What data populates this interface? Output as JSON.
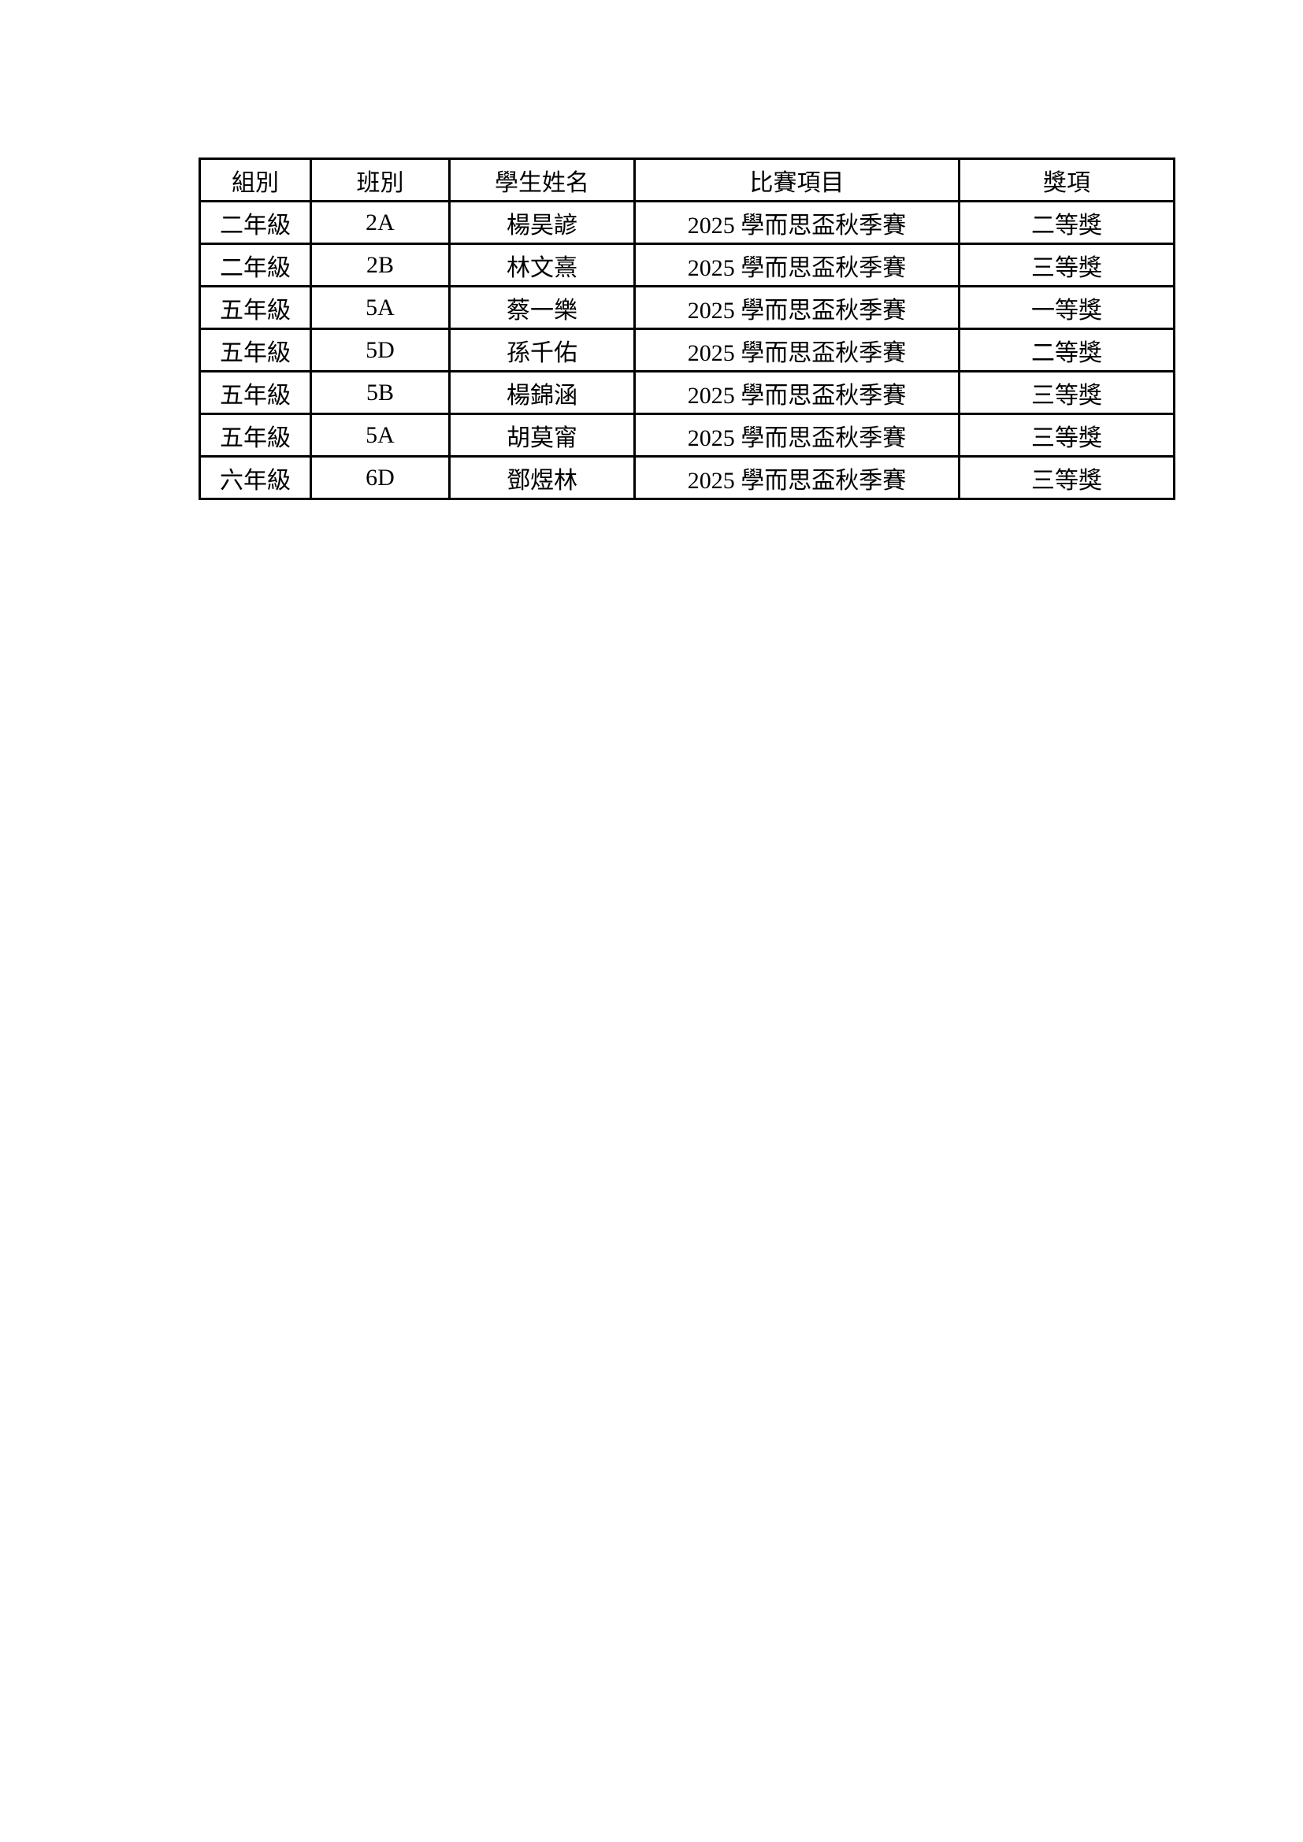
{
  "table": {
    "headers": [
      "組別",
      "班別",
      "學生姓名",
      "比賽項目",
      "獎項"
    ],
    "rows": [
      [
        "二年級",
        "2A",
        "楊昊諺",
        "2025 學而思盃秋季賽",
        "二等獎"
      ],
      [
        "二年級",
        "2B",
        "林文熹",
        "2025 學而思盃秋季賽",
        "三等獎"
      ],
      [
        "五年級",
        "5A",
        "蔡一樂",
        "2025 學而思盃秋季賽",
        "一等獎"
      ],
      [
        "五年級",
        "5D",
        "孫千佑",
        "2025 學而思盃秋季賽",
        "二等獎"
      ],
      [
        "五年級",
        "5B",
        "楊錦涵",
        "2025 學而思盃秋季賽",
        "三等獎"
      ],
      [
        "五年級",
        "5A",
        "胡莫甯",
        "2025 學而思盃秋季賽",
        "三等獎"
      ],
      [
        "六年級",
        "6D",
        "鄧煜林",
        "2025 學而思盃秋季賽",
        "三等獎"
      ]
    ],
    "border_color": "#000000"
  }
}
